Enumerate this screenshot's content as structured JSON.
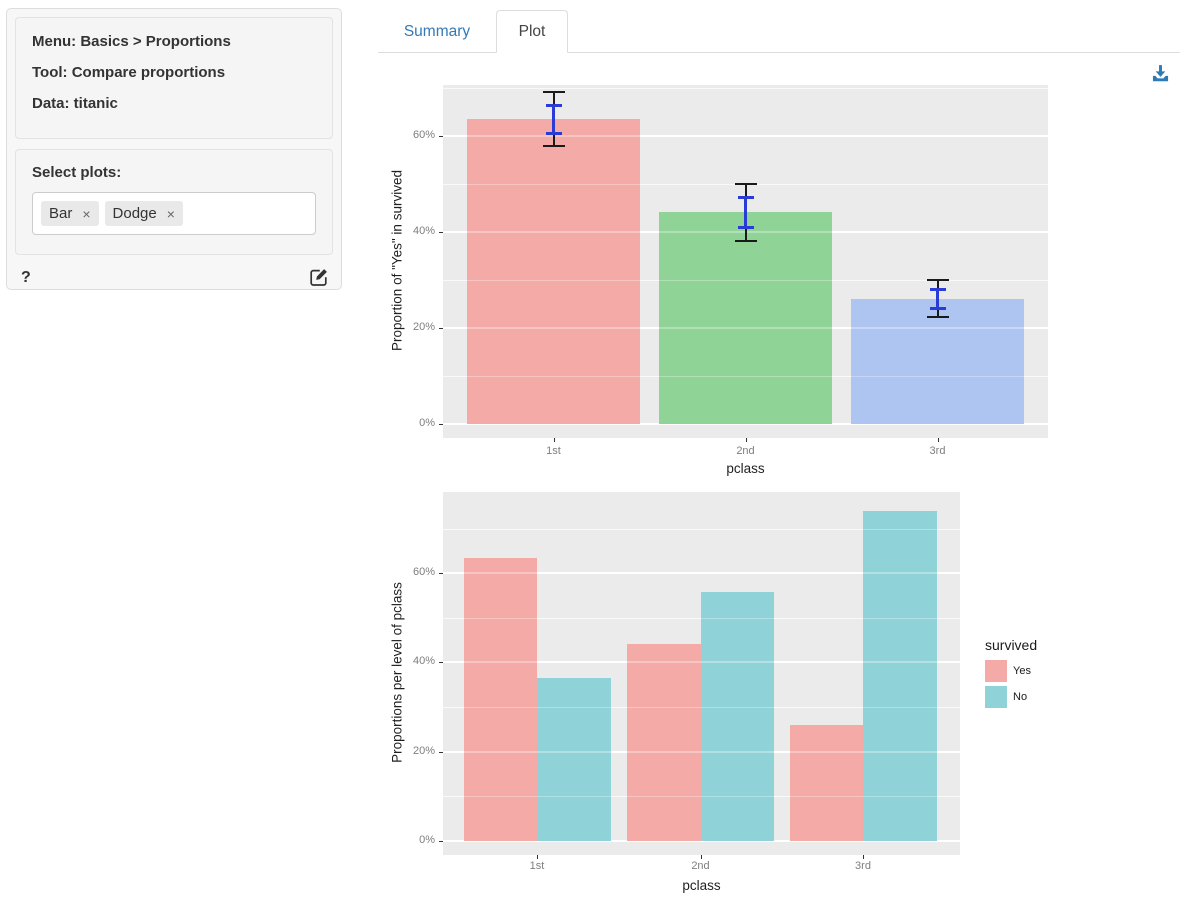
{
  "sidebar": {
    "info": {
      "menu": "Menu: Basics > Proportions",
      "tool": "Tool: Compare proportions",
      "data": "Data: titanic"
    },
    "select_plots": {
      "label": "Select plots:",
      "tags": [
        {
          "label": "Bar",
          "remove": "×"
        },
        {
          "label": "Dodge",
          "remove": "×"
        }
      ]
    },
    "help_label": "?"
  },
  "main": {
    "tabs": [
      {
        "label": "Summary",
        "active": false
      },
      {
        "label": "Plot",
        "active": true
      }
    ],
    "icons": {
      "download": "download-icon",
      "edit": "edit-icon",
      "help": "question-mark"
    }
  },
  "colors": {
    "accent_blue": "#337ab7",
    "download_icon": "#2d7ab9",
    "panel_bg": "#EBEBEB",
    "tick_label_gray": "#7e7e7e",
    "axis_title": "#1f1f1f"
  },
  "chart_data": [
    {
      "type": "bar",
      "categories": [
        "1st",
        "2nd",
        "3rd"
      ],
      "values": [
        63.5,
        44.1,
        26.1
      ],
      "bar_colors": [
        "#F4ABA8",
        "#90D396",
        "#ADC5F0"
      ],
      "error_bars": {
        "ci_95": [
          [
            57.9,
            69.2
          ],
          [
            38.1,
            50.1
          ],
          [
            22.3,
            29.9
          ]
        ],
        "se": [
          [
            60.6,
            66.4
          ],
          [
            41.0,
            47.2
          ],
          [
            24.1,
            28.1
          ]
        ],
        "ci_color": "#1a1a1a",
        "se_color": "#2b3cd6"
      },
      "xlabel": "pclass",
      "ylabel": "Proportion of \"Yes\" in survived",
      "yticks": [
        "0%",
        "20%",
        "40%",
        "60%"
      ],
      "ytick_values": [
        0,
        20,
        40,
        60
      ],
      "yticks_minor": [
        10,
        30,
        50,
        70
      ],
      "ylim": [
        -2.9,
        70.6
      ],
      "grid": true,
      "legend_position": "none"
    },
    {
      "type": "bar",
      "subtype": "dodge",
      "categories": [
        "1st",
        "2nd",
        "3rd"
      ],
      "series": [
        {
          "name": "Yes",
          "values": [
            63.5,
            44.1,
            26.1
          ],
          "color": "#F4ABA8"
        },
        {
          "name": "No",
          "values": [
            36.5,
            55.9,
            73.9
          ],
          "color": "#8FD3D8"
        }
      ],
      "legend": {
        "title": "survived",
        "position": "right"
      },
      "xlabel": "pclass",
      "ylabel": "Proportions per level of pclass",
      "yticks": [
        "0%",
        "20%",
        "40%",
        "60%"
      ],
      "ytick_values": [
        0,
        20,
        40,
        60
      ],
      "yticks_minor": [
        10,
        30,
        50,
        70
      ],
      "ylim": [
        -3.1,
        78.3
      ],
      "grid": true
    }
  ]
}
